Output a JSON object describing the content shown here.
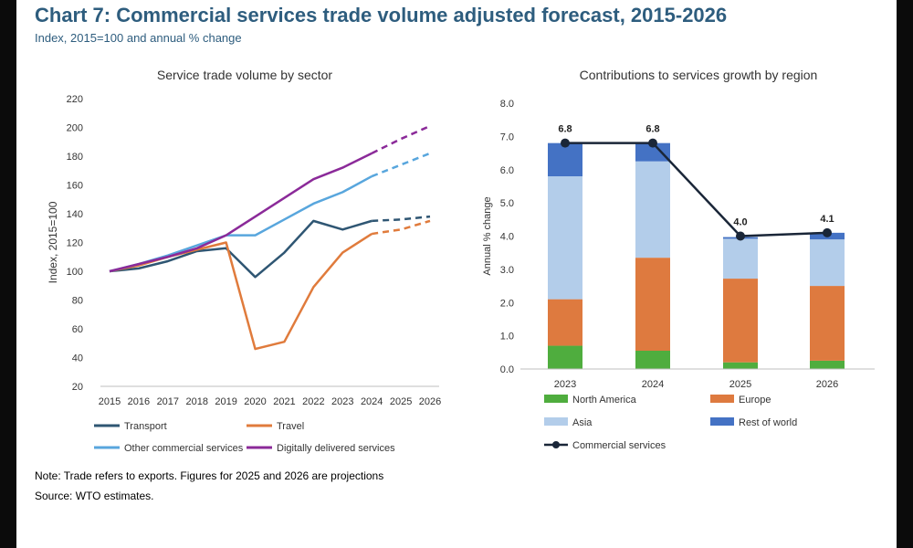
{
  "title": "Chart 7: Commercial services trade volume adjusted forecast, 2015-2026",
  "subtitle": "Index, 2015=100 and annual % change",
  "note": "Note: Trade refers to exports.  Figures for 2025 and 2026 are projections",
  "source": "Source: WTO estimates.",
  "colors": {
    "title": "#2e5d7e",
    "transport": "#2f5673",
    "travel": "#e07b3c",
    "other": "#58a6dd",
    "digital": "#8b2a99",
    "north_america": "#4fad3e",
    "europe": "#de7a3f",
    "asia": "#b3cdea",
    "rest_of_world": "#4472c4",
    "commercial": "#1a2638"
  },
  "chart_data": [
    {
      "type": "line",
      "title": "Service trade volume by sector",
      "xlabel": "",
      "ylabel": "Index, 2015=100",
      "x": [
        "2015",
        "2016",
        "2017",
        "2018",
        "2019",
        "2020",
        "2021",
        "2022",
        "2023",
        "2024",
        "2025",
        "2026"
      ],
      "ylim": [
        20,
        220
      ],
      "yticks": [
        20,
        40,
        60,
        80,
        100,
        120,
        140,
        160,
        180,
        200,
        220
      ],
      "projection_from": "2024",
      "legend": "bottom",
      "series": [
        {
          "name": "Transport",
          "color": "#2f5673",
          "values": [
            100,
            102,
            107,
            114,
            116,
            96,
            113,
            135,
            129,
            135,
            136,
            138
          ]
        },
        {
          "name": "Travel",
          "color": "#e07b3c",
          "values": [
            100,
            104,
            110,
            115,
            120,
            46,
            51,
            89,
            113,
            126,
            129,
            135
          ]
        },
        {
          "name": "Other commercial services",
          "color": "#58a6dd",
          "values": [
            100,
            105,
            111,
            118,
            125,
            125,
            136,
            147,
            155,
            166,
            174,
            182
          ]
        },
        {
          "name": "Digitally delivered services",
          "color": "#8b2a99",
          "values": [
            100,
            105,
            110,
            116,
            125,
            138,
            151,
            164,
            172,
            182,
            192,
            201
          ]
        }
      ]
    },
    {
      "type": "bar",
      "stacked": true,
      "title": "Contributions to services growth by region",
      "xlabel": "",
      "ylabel": "Annual % change",
      "categories": [
        "2023",
        "2024",
        "2025",
        "2026"
      ],
      "ylim": [
        0,
        8
      ],
      "yticks": [
        "0.0",
        "1.0",
        "2.0",
        "3.0",
        "4.0",
        "5.0",
        "6.0",
        "7.0",
        "8.0"
      ],
      "legend": "bottom",
      "series": [
        {
          "name": "North America",
          "color": "#4fad3e",
          "values": [
            0.7,
            0.55,
            0.2,
            0.25
          ]
        },
        {
          "name": "Europe",
          "color": "#de7a3f",
          "values": [
            1.4,
            2.8,
            2.52,
            2.25
          ]
        },
        {
          "name": "Asia",
          "color": "#b3cdea",
          "values": [
            3.7,
            2.9,
            1.2,
            1.4
          ]
        },
        {
          "name": "Rest of world",
          "color": "#4472c4",
          "values": [
            1.0,
            0.55,
            0.05,
            0.2
          ]
        }
      ],
      "line": {
        "name": "Commercial services",
        "color": "#1a2638",
        "values": [
          6.8,
          6.8,
          4.0,
          4.1
        ],
        "labels": [
          "6.8",
          "6.8",
          "4.0",
          "4.1"
        ]
      }
    }
  ]
}
